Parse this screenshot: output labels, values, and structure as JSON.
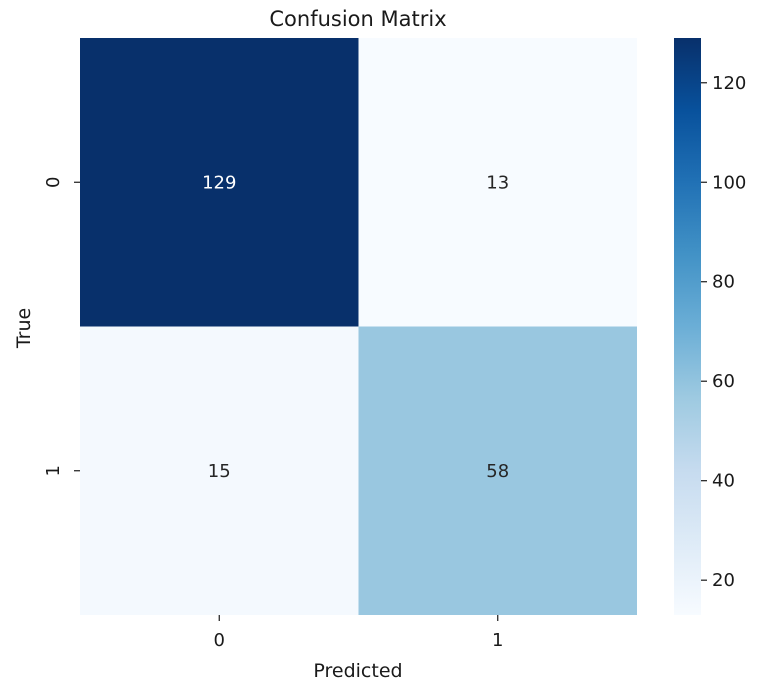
{
  "chart_data": {
    "type": "heatmap",
    "title": "Confusion Matrix",
    "xlabel": "Predicted",
    "ylabel": "True",
    "x_categories": [
      "0",
      "1"
    ],
    "y_categories": [
      "0",
      "1"
    ],
    "values": [
      [
        129,
        13
      ],
      [
        15,
        58
      ]
    ],
    "colormap": "Blues",
    "colorbar": {
      "range": [
        13,
        129
      ],
      "ticks": [
        20,
        40,
        60,
        80,
        100,
        120
      ]
    }
  }
}
